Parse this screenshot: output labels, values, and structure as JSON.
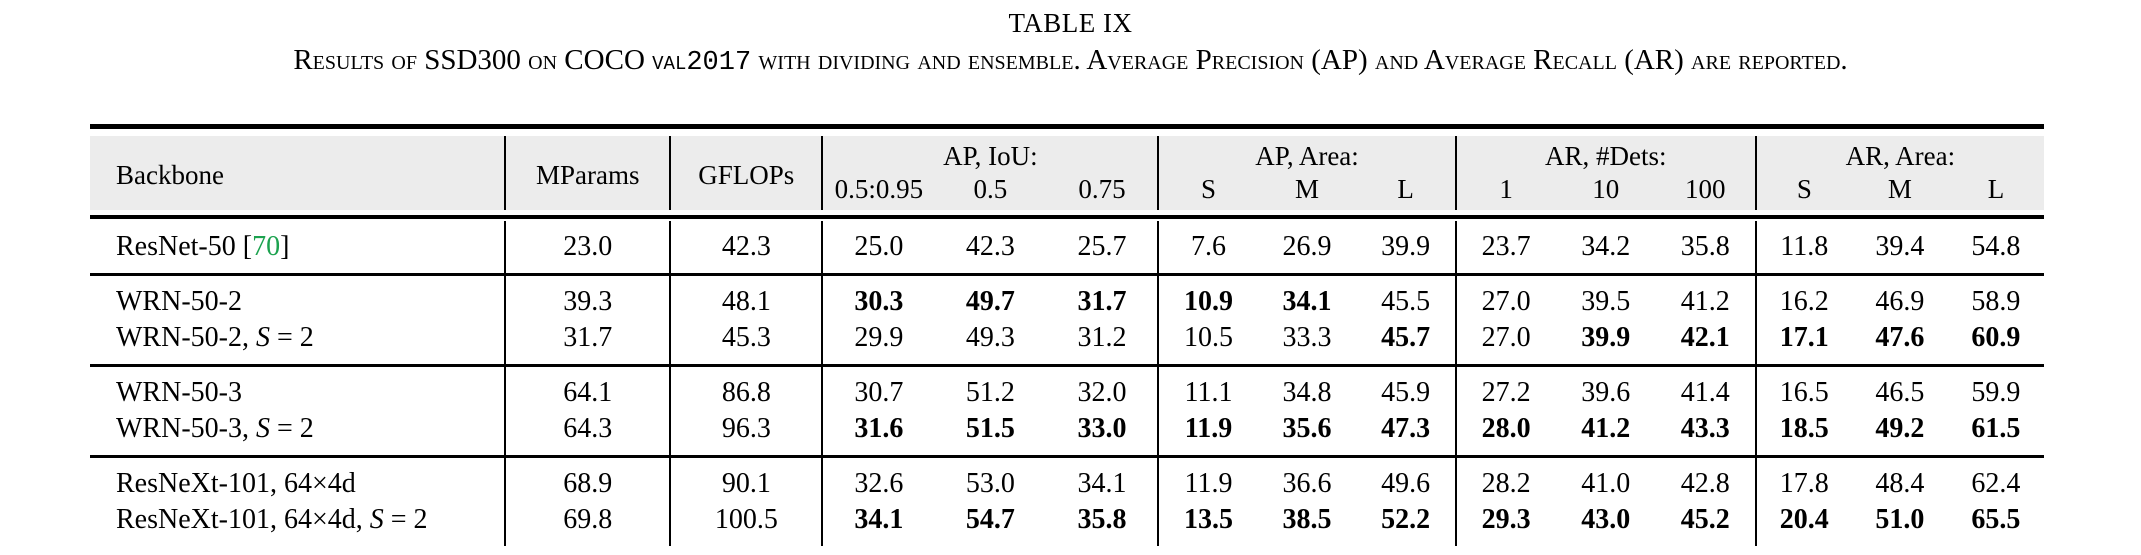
{
  "title": "TABLE IX",
  "caption": {
    "pre": "Results of SSD300 on COCO ",
    "code": "val2017",
    "post": " with dividing and ensemble. Average Precision (AP) and Average Recall (AR) are reported."
  },
  "colors": {
    "citation_green": "#1CA24F",
    "header_background": "#ECECEC",
    "rule_black": "#000000"
  },
  "table": {
    "columns": {
      "backbone": "Backbone",
      "mparams": "MParams",
      "gflops": "GFLOPs",
      "groups": [
        {
          "label": "AP, IoU:",
          "subs": [
            "0.5:0.95",
            "0.5",
            "0.75"
          ]
        },
        {
          "label": "AP, Area:",
          "subs": [
            "S",
            "M",
            "L"
          ]
        },
        {
          "label": "AR, #Dets:",
          "subs": [
            "1",
            "10",
            "100"
          ]
        },
        {
          "label": "AR, Area:",
          "subs": [
            "S",
            "M",
            "L"
          ]
        }
      ]
    },
    "groups": [
      {
        "rows": [
          {
            "name": "ResNet-50 ",
            "cite_open": "[",
            "cite": "70",
            "cite_close": "]",
            "values": [
              "23.0",
              "42.3",
              "25.0",
              "42.3",
              "25.7",
              "7.6",
              "26.9",
              "39.9",
              "23.7",
              "34.2",
              "35.8",
              "11.8",
              "39.4",
              "54.8"
            ],
            "bold": [
              0,
              0,
              0,
              0,
              0,
              0,
              0,
              0,
              0,
              0,
              0,
              0,
              0,
              0
            ]
          }
        ]
      },
      {
        "rows": [
          {
            "name": "WRN-50-2",
            "values": [
              "39.3",
              "48.1",
              "30.3",
              "49.7",
              "31.7",
              "10.9",
              "34.1",
              "45.5",
              "27.0",
              "39.5",
              "41.2",
              "16.2",
              "46.9",
              "58.9"
            ],
            "bold": [
              0,
              0,
              1,
              1,
              1,
              1,
              1,
              0,
              0,
              0,
              0,
              0,
              0,
              0
            ]
          },
          {
            "name": "WRN-50-2, ",
            "math_var": "S",
            "math_rest": " = 2",
            "values": [
              "31.7",
              "45.3",
              "29.9",
              "49.3",
              "31.2",
              "10.5",
              "33.3",
              "45.7",
              "27.0",
              "39.9",
              "42.1",
              "17.1",
              "47.6",
              "60.9"
            ],
            "bold": [
              0,
              0,
              0,
              0,
              0,
              0,
              0,
              1,
              0,
              1,
              1,
              1,
              1,
              1
            ]
          }
        ]
      },
      {
        "rows": [
          {
            "name": "WRN-50-3",
            "values": [
              "64.1",
              "86.8",
              "30.7",
              "51.2",
              "32.0",
              "11.1",
              "34.8",
              "45.9",
              "27.2",
              "39.6",
              "41.4",
              "16.5",
              "46.5",
              "59.9"
            ],
            "bold": [
              0,
              0,
              0,
              0,
              0,
              0,
              0,
              0,
              0,
              0,
              0,
              0,
              0,
              0
            ]
          },
          {
            "name": "WRN-50-3, ",
            "math_var": "S",
            "math_rest": " = 2",
            "values": [
              "64.3",
              "96.3",
              "31.6",
              "51.5",
              "33.0",
              "11.9",
              "35.6",
              "47.3",
              "28.0",
              "41.2",
              "43.3",
              "18.5",
              "49.2",
              "61.5"
            ],
            "bold": [
              0,
              0,
              1,
              1,
              1,
              1,
              1,
              1,
              1,
              1,
              1,
              1,
              1,
              1
            ]
          }
        ]
      },
      {
        "rows": [
          {
            "name": "ResNeXt-101, 64×4d",
            "values": [
              "68.9",
              "90.1",
              "32.6",
              "53.0",
              "34.1",
              "11.9",
              "36.6",
              "49.6",
              "28.2",
              "41.0",
              "42.8",
              "17.8",
              "48.4",
              "62.4"
            ],
            "bold": [
              0,
              0,
              0,
              0,
              0,
              0,
              0,
              0,
              0,
              0,
              0,
              0,
              0,
              0
            ]
          },
          {
            "name": "ResNeXt-101, 64×4d, ",
            "math_var": "S",
            "math_rest": " = 2",
            "values": [
              "69.8",
              "100.5",
              "34.1",
              "54.7",
              "35.8",
              "13.5",
              "38.5",
              "52.2",
              "29.3",
              "43.0",
              "45.2",
              "20.4",
              "51.0",
              "65.5"
            ],
            "bold": [
              0,
              0,
              1,
              1,
              1,
              1,
              1,
              1,
              1,
              1,
              1,
              1,
              1,
              1
            ]
          }
        ]
      }
    ]
  }
}
